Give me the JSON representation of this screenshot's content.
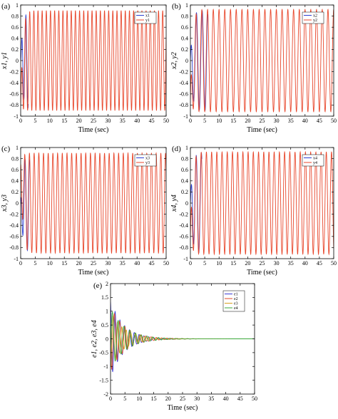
{
  "figure": {
    "colors": {
      "x": "#2a3fd1",
      "y": "#e8462b",
      "frame": "#000000",
      "e1": "#3b3bd6",
      "e2": "#e24a2a",
      "e3": "#d8a020",
      "e4": "#3aa83a"
    }
  },
  "chart_data": [
    {
      "id": "a",
      "panel_label": "(a)",
      "type": "line",
      "xlabel": "Time (sec)",
      "ylabel": "x1, y1",
      "xlim": [
        0,
        50
      ],
      "ylim": [
        -1,
        1
      ],
      "xticks": [
        "0",
        "5",
        "10",
        "15",
        "20",
        "25",
        "30",
        "35",
        "40",
        "45",
        "50"
      ],
      "yticks": [
        "-1",
        "-0.8",
        "-0.6",
        "-0.4",
        "-0.2",
        "0",
        "0.2",
        "0.4",
        "0.6",
        "0.8",
        "1"
      ],
      "legend": [
        "x1",
        "y1"
      ],
      "legend_position": "top-right",
      "series": [
        {
          "name": "x1",
          "color": "#2a3fd1",
          "amplitude": 0.88,
          "cycles_per_sec": 0.7,
          "phase_rad": 0.0,
          "x_range": [
            0,
            2.6
          ]
        },
        {
          "name": "y1",
          "color": "#e8462b",
          "amplitude": 0.9,
          "cycles_per_sec": 0.7,
          "phase_rad": 0.5,
          "x_range": [
            0,
            50
          ],
          "initial_offset": -0.8
        }
      ]
    },
    {
      "id": "b",
      "panel_label": "(b)",
      "type": "line",
      "xlabel": "Time (sec)",
      "ylabel": "x2, y2",
      "xlim": [
        0,
        50
      ],
      "ylim": [
        -1,
        1
      ],
      "xticks": [
        "0",
        "5",
        "10",
        "15",
        "20",
        "25",
        "30",
        "35",
        "40",
        "45",
        "50"
      ],
      "yticks": [
        "-1",
        "-0.8",
        "-0.6",
        "-0.4",
        "-0.2",
        "0",
        "0.2",
        "0.4",
        "0.6",
        "0.8",
        "1"
      ],
      "legend": [
        "x2",
        "y2"
      ],
      "legend_position": "top-right",
      "series": [
        {
          "name": "x2",
          "color": "#2a3fd1",
          "amplitude": 0.9,
          "cycles_per_sec": 0.5,
          "phase_rad": 1.2,
          "x_range": [
            0,
            6
          ]
        },
        {
          "name": "y2",
          "color": "#e8462b",
          "amplitude": 0.92,
          "cycles_per_sec": 0.5,
          "phase_rad": 1.6,
          "x_range": [
            0,
            50
          ],
          "initial_offset": -0.7
        }
      ]
    },
    {
      "id": "c",
      "panel_label": "(c)",
      "type": "line",
      "xlabel": "Time (sec)",
      "ylabel": "x3, y3",
      "xlim": [
        0,
        50
      ],
      "ylim": [
        -1,
        1
      ],
      "xticks": [
        "0",
        "5",
        "10",
        "15",
        "20",
        "25",
        "30",
        "35",
        "40",
        "45",
        "50"
      ],
      "yticks": [
        "-1",
        "-0.8",
        "-0.6",
        "-0.4",
        "-0.2",
        "0",
        "0.2",
        "0.4",
        "0.6",
        "0.8",
        "1"
      ],
      "legend": [
        "x3",
        "y3"
      ],
      "legend_position": "top-right",
      "series": [
        {
          "name": "x3",
          "color": "#2a3fd1",
          "amplitude": 0.88,
          "cycles_per_sec": 0.62,
          "phase_rad": 2.0,
          "x_range": [
            0,
            3
          ]
        },
        {
          "name": "y3",
          "color": "#e8462b",
          "amplitude": 0.9,
          "cycles_per_sec": 0.62,
          "phase_rad": 2.4,
          "x_range": [
            0,
            50
          ],
          "initial_offset": 0.7
        }
      ]
    },
    {
      "id": "d",
      "panel_label": "(d)",
      "type": "line",
      "xlabel": "Time (sec)",
      "ylabel": "x4, y4",
      "xlim": [
        0,
        50
      ],
      "ylim": [
        -1,
        1
      ],
      "xticks": [
        "0",
        "5",
        "10",
        "15",
        "20",
        "25",
        "30",
        "35",
        "40",
        "45",
        "50"
      ],
      "yticks": [
        "-1",
        "-0.8",
        "-0.6",
        "-0.4",
        "-0.2",
        "0",
        "0.2",
        "0.4",
        "0.6",
        "0.8",
        "1"
      ],
      "legend": [
        "x4",
        "y4"
      ],
      "legend_position": "top-right",
      "series": [
        {
          "name": "x4",
          "color": "#2a3fd1",
          "amplitude": 0.9,
          "cycles_per_sec": 0.55,
          "phase_rad": 0.8,
          "x_range": [
            0,
            4
          ]
        },
        {
          "name": "y4",
          "color": "#e8462b",
          "amplitude": 0.92,
          "cycles_per_sec": 0.55,
          "phase_rad": 1.1,
          "x_range": [
            0,
            50
          ],
          "initial_offset": -0.6
        }
      ]
    },
    {
      "id": "e",
      "panel_label": "(e)",
      "type": "line",
      "xlabel": "Time (sec)",
      "ylabel": "e1, e2, e3, e4",
      "xlim": [
        0,
        50
      ],
      "ylim": [
        -2,
        2
      ],
      "xticks": [
        "0",
        "5",
        "10",
        "15",
        "20",
        "25",
        "30",
        "35",
        "40",
        "45",
        "50"
      ],
      "yticks": [
        "-2",
        "-1.5",
        "-1",
        "-0.5",
        "0",
        "0.5",
        "1",
        "1.5",
        "2"
      ],
      "legend": [
        "e1",
        "e2",
        "e3",
        "e4"
      ],
      "legend_position": "top-right",
      "series": [
        {
          "name": "e1",
          "color": "#3b3bd6",
          "amplitude": 1.4,
          "decay_per_sec": 0.22,
          "cycles_per_sec": 0.6,
          "phase_rad": 0.3
        },
        {
          "name": "e2",
          "color": "#e24a2a",
          "amplitude": 1.2,
          "decay_per_sec": 0.2,
          "cycles_per_sec": 0.55,
          "phase_rad": 1.6
        },
        {
          "name": "e3",
          "color": "#d8a020",
          "amplitude": 1.0,
          "decay_per_sec": 0.21,
          "cycles_per_sec": 0.65,
          "phase_rad": 2.8
        },
        {
          "name": "e4",
          "color": "#3aa83a",
          "amplitude": 1.1,
          "decay_per_sec": 0.19,
          "cycles_per_sec": 0.5,
          "phase_rad": 4.2
        }
      ]
    }
  ]
}
